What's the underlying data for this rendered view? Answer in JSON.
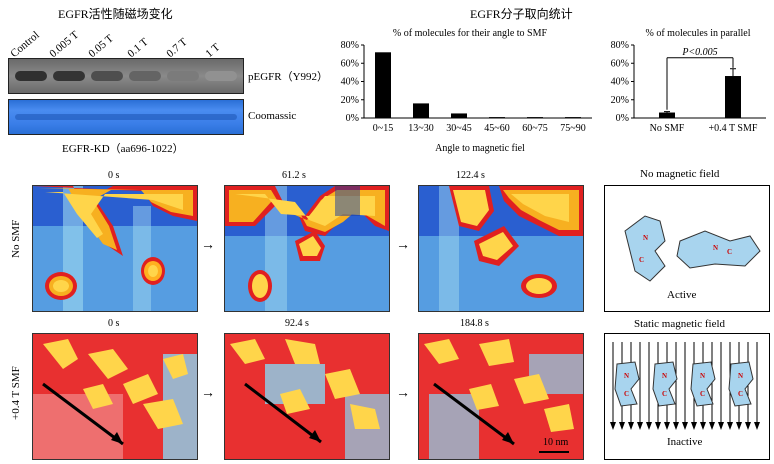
{
  "panel_a": {
    "title": "EGFR活性随磁场变化",
    "lanes": [
      "Control",
      "0.005 T",
      "0.05 T",
      "0.1 T",
      "0.7 T",
      "1 T"
    ],
    "label_blot1": "pEGFR（Y992）",
    "label_blot2": "Coomassic",
    "caption": "EGFR-KD（aa696-1022）",
    "band_intensity": [
      0.95,
      0.92,
      0.75,
      0.6,
      0.45,
      0.3
    ]
  },
  "panel_b": {
    "title": "EGFR分子取向统计",
    "chart1_title": "% of molecules for their angle to SMF",
    "chart2_title": "% of molecules in parallel",
    "xlabel": "Angle to magnetic fiel",
    "pvalue": "P<0.005",
    "colors": {
      "bar": "#000000"
    }
  },
  "chart_data": [
    {
      "type": "bar",
      "title": "% of molecules for their angle to SMF",
      "categories": [
        "0~15",
        "13~30",
        "30~45",
        "45~60",
        "60~75",
        "75~90"
      ],
      "values": [
        72,
        16,
        5,
        1,
        1,
        1
      ],
      "xlabel": "Angle to magnetic fiel",
      "ylabel": "",
      "yticks": [
        "0%",
        "20%",
        "40%",
        "60%",
        "80%"
      ],
      "ylim": [
        0,
        80
      ]
    },
    {
      "type": "bar",
      "title": "% of molecules in parallel",
      "categories": [
        "No SMF",
        "+0.4 T SMF"
      ],
      "values": [
        6,
        46
      ],
      "errors": [
        1,
        8
      ],
      "yticks": [
        "0%",
        "20%",
        "40%",
        "60%",
        "80%"
      ],
      "ylim": [
        0,
        80
      ],
      "annotation": "P<0.005"
    }
  ],
  "panel_c": {
    "row1_label": "No SMF",
    "row2_label": "+0.4 T SMF",
    "row1_times": [
      "0 s",
      "61.2 s",
      "122.4 s"
    ],
    "row2_times": [
      "0 s",
      "92.4 s",
      "184.8 s"
    ],
    "arrow": "→",
    "scale_bar": "10 nm",
    "box1_title": "No magnetic field",
    "box1_label": "Active",
    "box2_title": "Static magnetic field",
    "box2_label": "Inactive",
    "protein_letters": [
      "N",
      "C"
    ]
  }
}
